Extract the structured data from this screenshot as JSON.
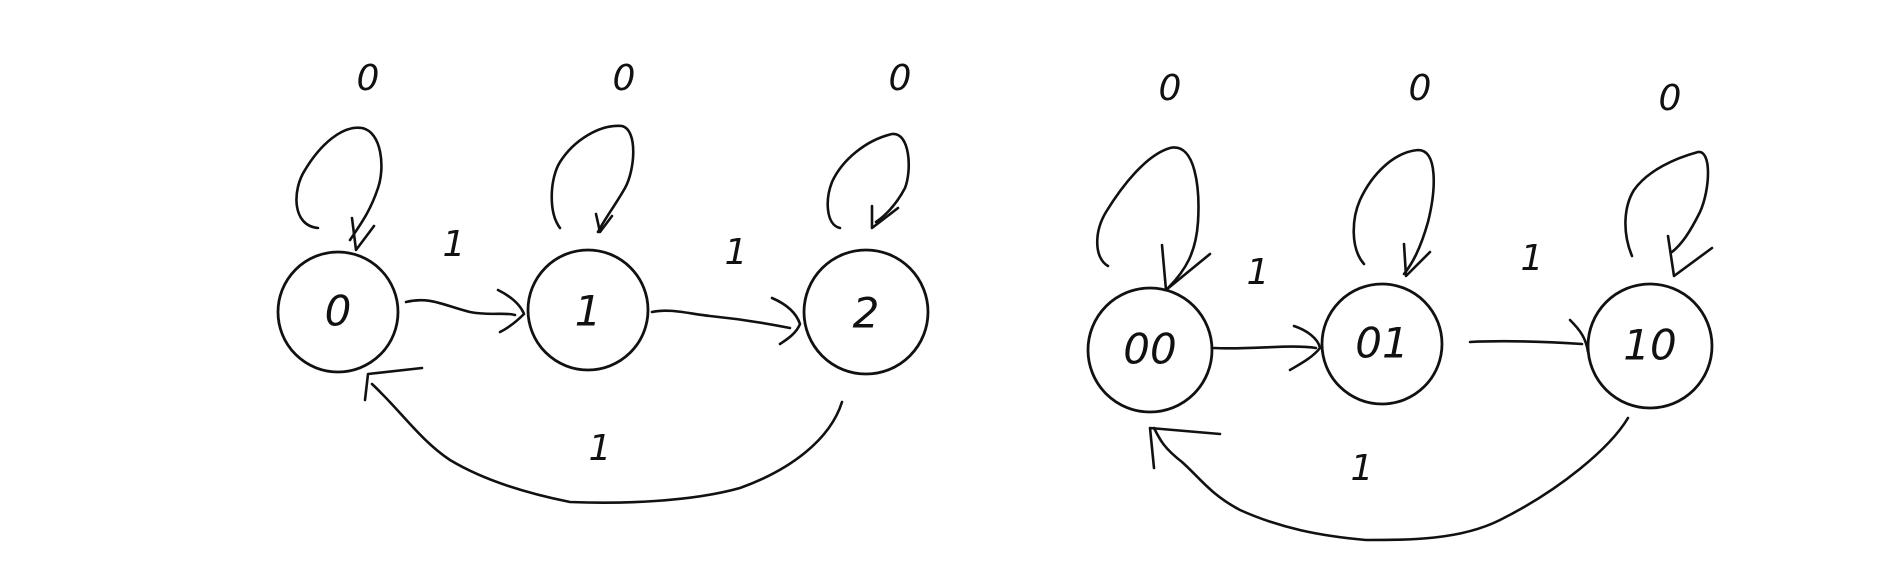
{
  "diagrams": [
    {
      "states": [
        "0",
        "1",
        "2"
      ],
      "self_loop_labels": [
        "0",
        "0",
        "0"
      ],
      "forward_edge_labels": [
        "1",
        "1"
      ],
      "return_edge_label": "1"
    },
    {
      "states": [
        "00",
        "01",
        "10"
      ],
      "self_loop_labels": [
        "0",
        "0",
        "0"
      ],
      "forward_edge_labels": [
        "1",
        "1"
      ],
      "return_edge_label": "1"
    }
  ],
  "ink_color": "#111111",
  "background_color": "#ffffff"
}
